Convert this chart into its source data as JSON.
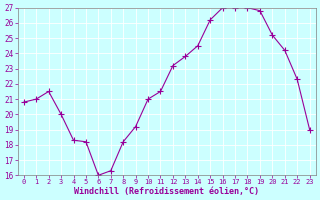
{
  "x": [
    0,
    1,
    2,
    3,
    4,
    5,
    6,
    7,
    8,
    9,
    10,
    11,
    12,
    13,
    14,
    15,
    16,
    17,
    18,
    19,
    20,
    21,
    22,
    23
  ],
  "y": [
    20.8,
    21.0,
    21.5,
    20.0,
    18.3,
    18.2,
    16.0,
    16.3,
    18.2,
    19.2,
    21.0,
    21.5,
    23.2,
    23.8,
    24.5,
    26.2,
    27.0,
    27.0,
    27.0,
    26.8,
    25.2,
    24.2,
    22.3,
    19.0
  ],
  "xlim": [
    -0.5,
    23.5
  ],
  "ylim": [
    16,
    27
  ],
  "yticks": [
    16,
    17,
    18,
    19,
    20,
    21,
    22,
    23,
    24,
    25,
    26,
    27
  ],
  "xticks": [
    0,
    1,
    2,
    3,
    4,
    5,
    6,
    7,
    8,
    9,
    10,
    11,
    12,
    13,
    14,
    15,
    16,
    17,
    18,
    19,
    20,
    21,
    22,
    23
  ],
  "xlabel": "Windchill (Refroidissement éolien,°C)",
  "line_color": "#990099",
  "marker": "+",
  "bg_color": "#ccffff",
  "grid_color": "#ffffff",
  "xlabel_color": "#990099",
  "tick_color": "#990099",
  "axis_color": "#808080"
}
